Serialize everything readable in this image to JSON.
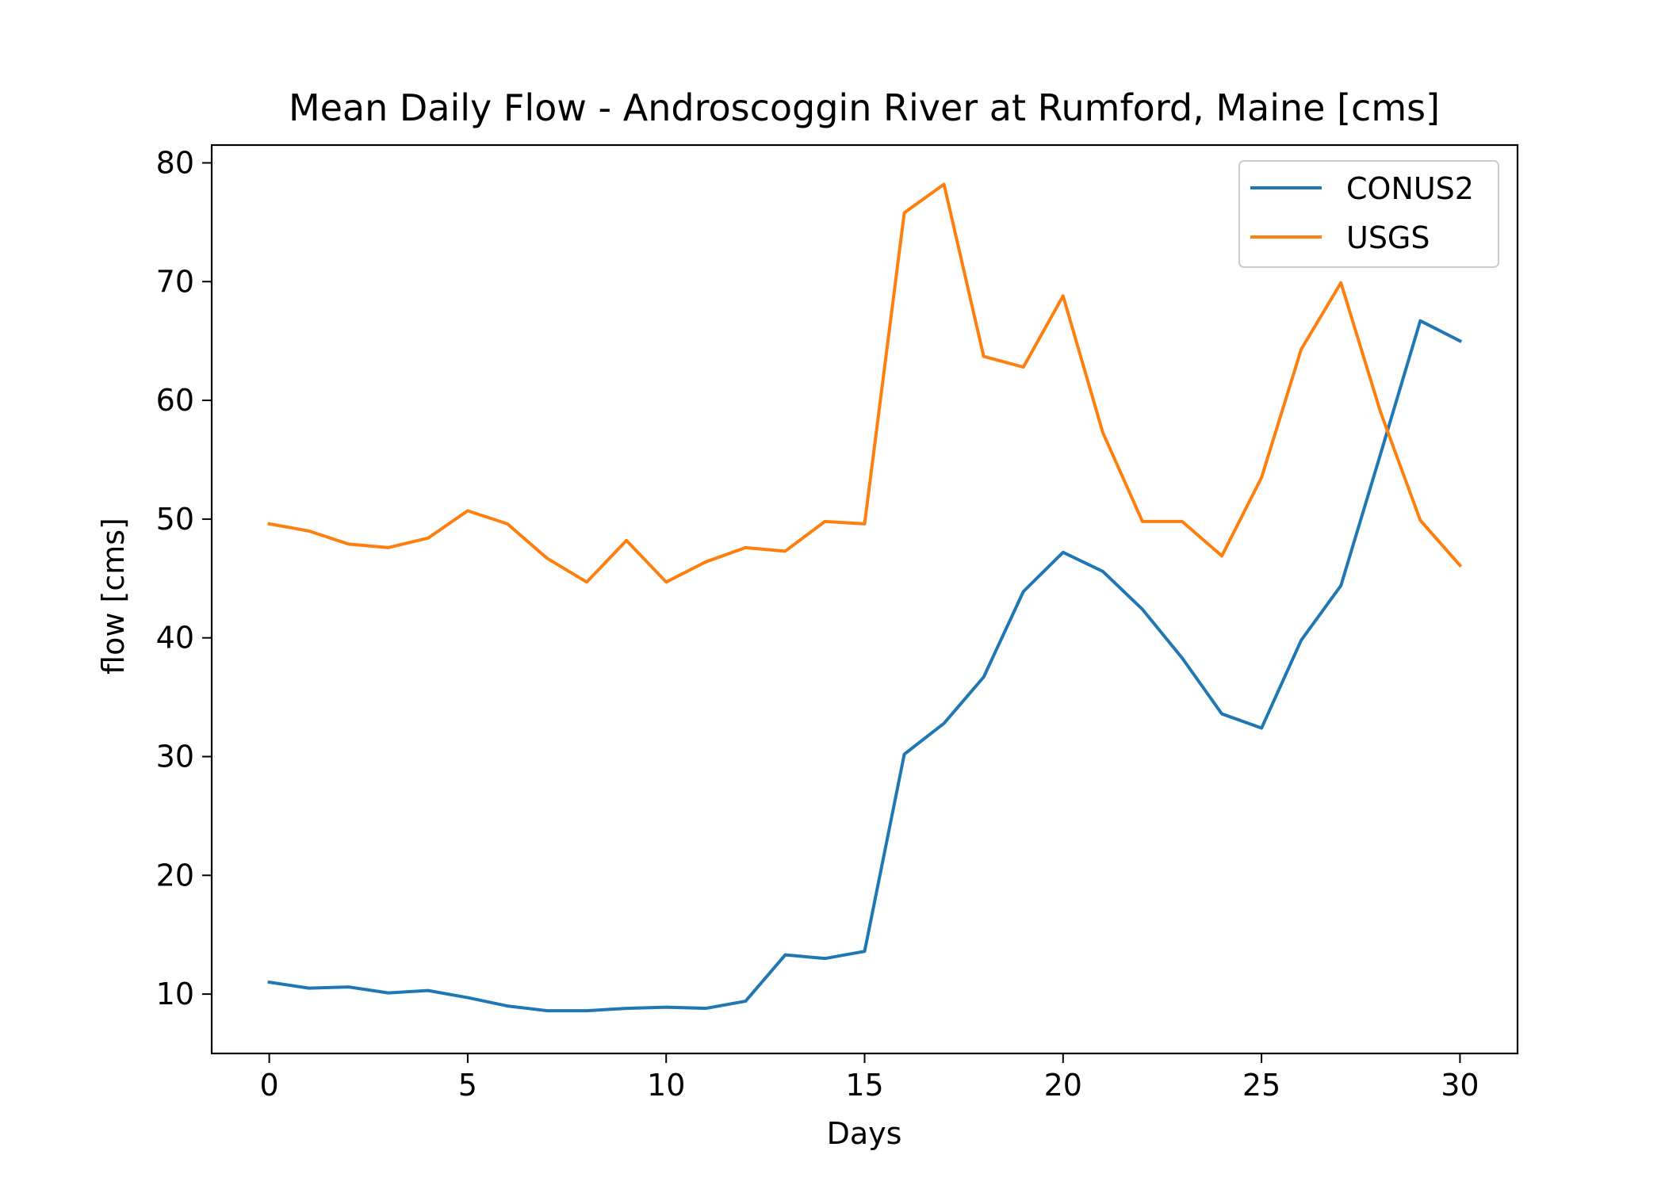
{
  "chart_data": {
    "type": "line",
    "title": "Mean Daily Flow - Androscoggin River at Rumford, Maine [cms]",
    "xlabel": "Days",
    "ylabel": "flow [cms]",
    "xlim": [
      -1.45,
      31.45
    ],
    "ylim": [
      5.0,
      81.5
    ],
    "xticks": [
      0,
      5,
      10,
      15,
      20,
      25,
      30
    ],
    "yticks": [
      10,
      20,
      30,
      40,
      50,
      60,
      70,
      80
    ],
    "grid": false,
    "legend_position": "upper right",
    "x": [
      0,
      1,
      2,
      3,
      4,
      5,
      6,
      7,
      8,
      9,
      10,
      11,
      12,
      13,
      14,
      15,
      16,
      17,
      18,
      19,
      20,
      21,
      22,
      23,
      24,
      25,
      26,
      27,
      28,
      29,
      30
    ],
    "series": [
      {
        "name": "CONUS2",
        "color": "#1f77b4",
        "values": [
          11.0,
          10.5,
          10.6,
          10.1,
          10.3,
          9.7,
          9.0,
          8.6,
          8.6,
          8.8,
          8.9,
          8.8,
          9.4,
          13.3,
          13.0,
          13.6,
          30.2,
          32.8,
          36.7,
          43.9,
          47.2,
          45.6,
          42.4,
          38.3,
          33.6,
          32.4,
          39.8,
          44.4,
          55.5,
          66.7,
          65.0
        ]
      },
      {
        "name": "USGS",
        "color": "#ff7f0e",
        "values": [
          49.6,
          49.0,
          47.9,
          47.6,
          48.4,
          50.7,
          49.6,
          46.7,
          44.7,
          48.2,
          44.7,
          46.4,
          47.6,
          47.3,
          49.8,
          49.6,
          75.8,
          78.2,
          63.7,
          62.8,
          68.8,
          57.3,
          49.8,
          49.8,
          46.9,
          53.5,
          64.3,
          69.9,
          59.0,
          49.9,
          46.1
        ]
      }
    ]
  }
}
